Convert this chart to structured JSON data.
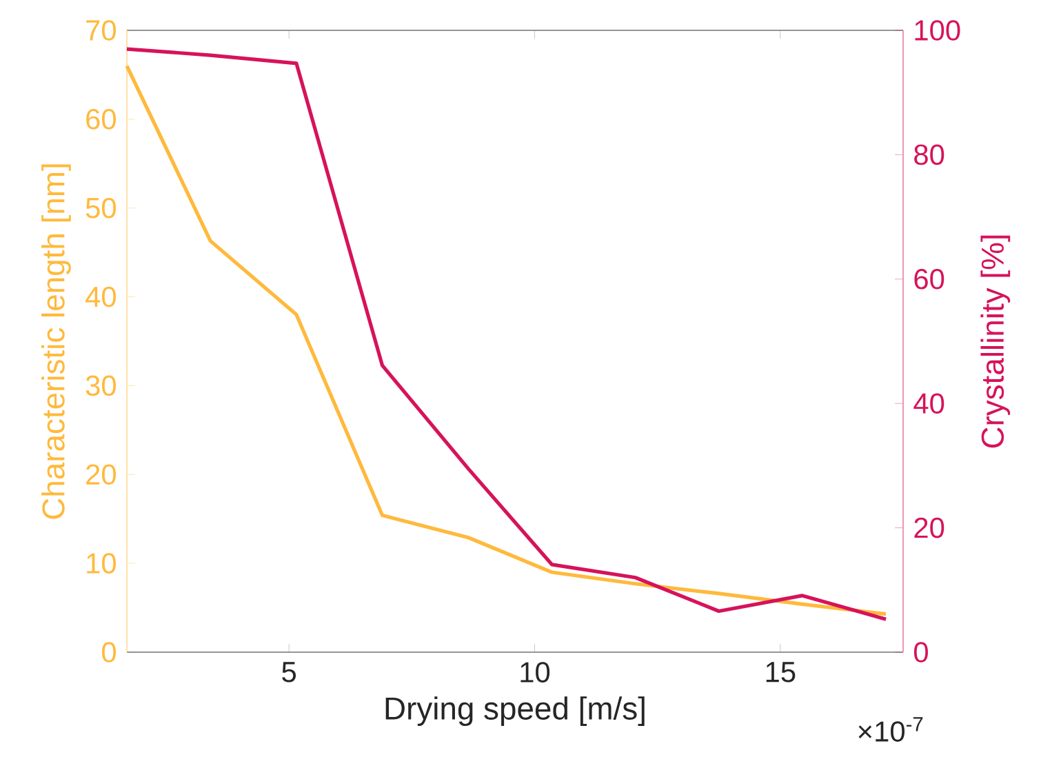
{
  "chart_data": {
    "type": "line",
    "xlabel": "Drying speed [m/s]",
    "ylabel": "Characteristic length [nm]",
    "y2label": "Crystallinity [%]",
    "x": [
      1.7,
      3.4,
      5.15,
      6.9,
      8.65,
      10.35,
      12.05,
      13.75,
      15.45,
      17.15
    ],
    "series": [
      {
        "color": "#ffb93c",
        "values": [
          66,
          46.3,
          38,
          15.4,
          12.9,
          9,
          7.7,
          6.6,
          5.4,
          4.3
        ]
      },
      {
        "color": "#d6135a",
        "axis": "y2",
        "values": [
          97,
          96,
          94.7,
          46.1,
          29.5,
          14.1,
          12,
          6.6,
          9.1,
          5.3
        ]
      }
    ],
    "xlim": [
      1.7,
      17.5
    ],
    "ylim": [
      0,
      70
    ],
    "y2lim": [
      0,
      100
    ],
    "xticks": [
      5,
      10,
      15
    ],
    "yticks": [
      0,
      10,
      20,
      30,
      40,
      50,
      60,
      70
    ],
    "y2ticks": [
      0,
      20,
      40,
      60,
      80,
      100
    ],
    "annotations": [
      "×10$^{-7}$"
    ]
  }
}
